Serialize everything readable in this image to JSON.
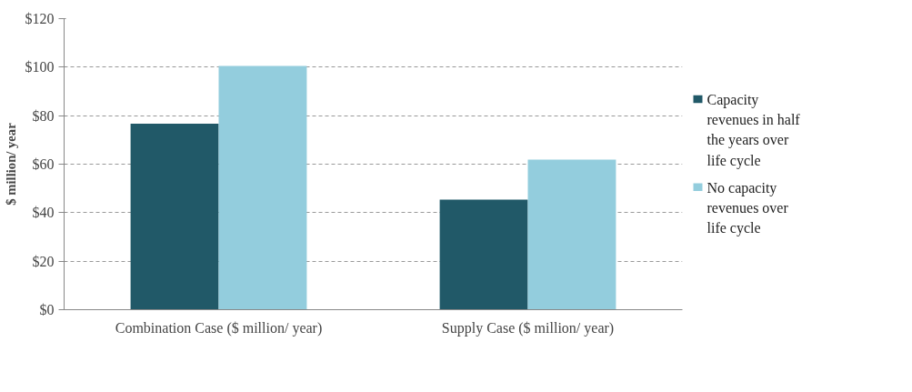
{
  "chart_data": {
    "type": "bar",
    "ylabel": "$ million/ year",
    "categories": [
      "Combination Case ($ million/ year)",
      "Supply Case ($ million/ year)"
    ],
    "series": [
      {
        "name": "Capacity revenues in half the years over life cycle",
        "color": "#215968",
        "values": [
          76.7,
          45.4
        ]
      },
      {
        "name": "No capacity revenues  over life cycle",
        "color": "#93cddd",
        "values": [
          100.5,
          61.9
        ]
      }
    ],
    "ylim": [
      0,
      120
    ],
    "yticks": [
      {
        "value": 0,
        "label": "$0"
      },
      {
        "value": 20,
        "label": "$20"
      },
      {
        "value": 40,
        "label": "$40"
      },
      {
        "value": 60,
        "label": "$60"
      },
      {
        "value": 80,
        "label": "$80"
      },
      {
        "value": 100,
        "label": "$100"
      },
      {
        "value": 120,
        "label": "$120"
      }
    ],
    "grid": "y",
    "legend": "right"
  }
}
